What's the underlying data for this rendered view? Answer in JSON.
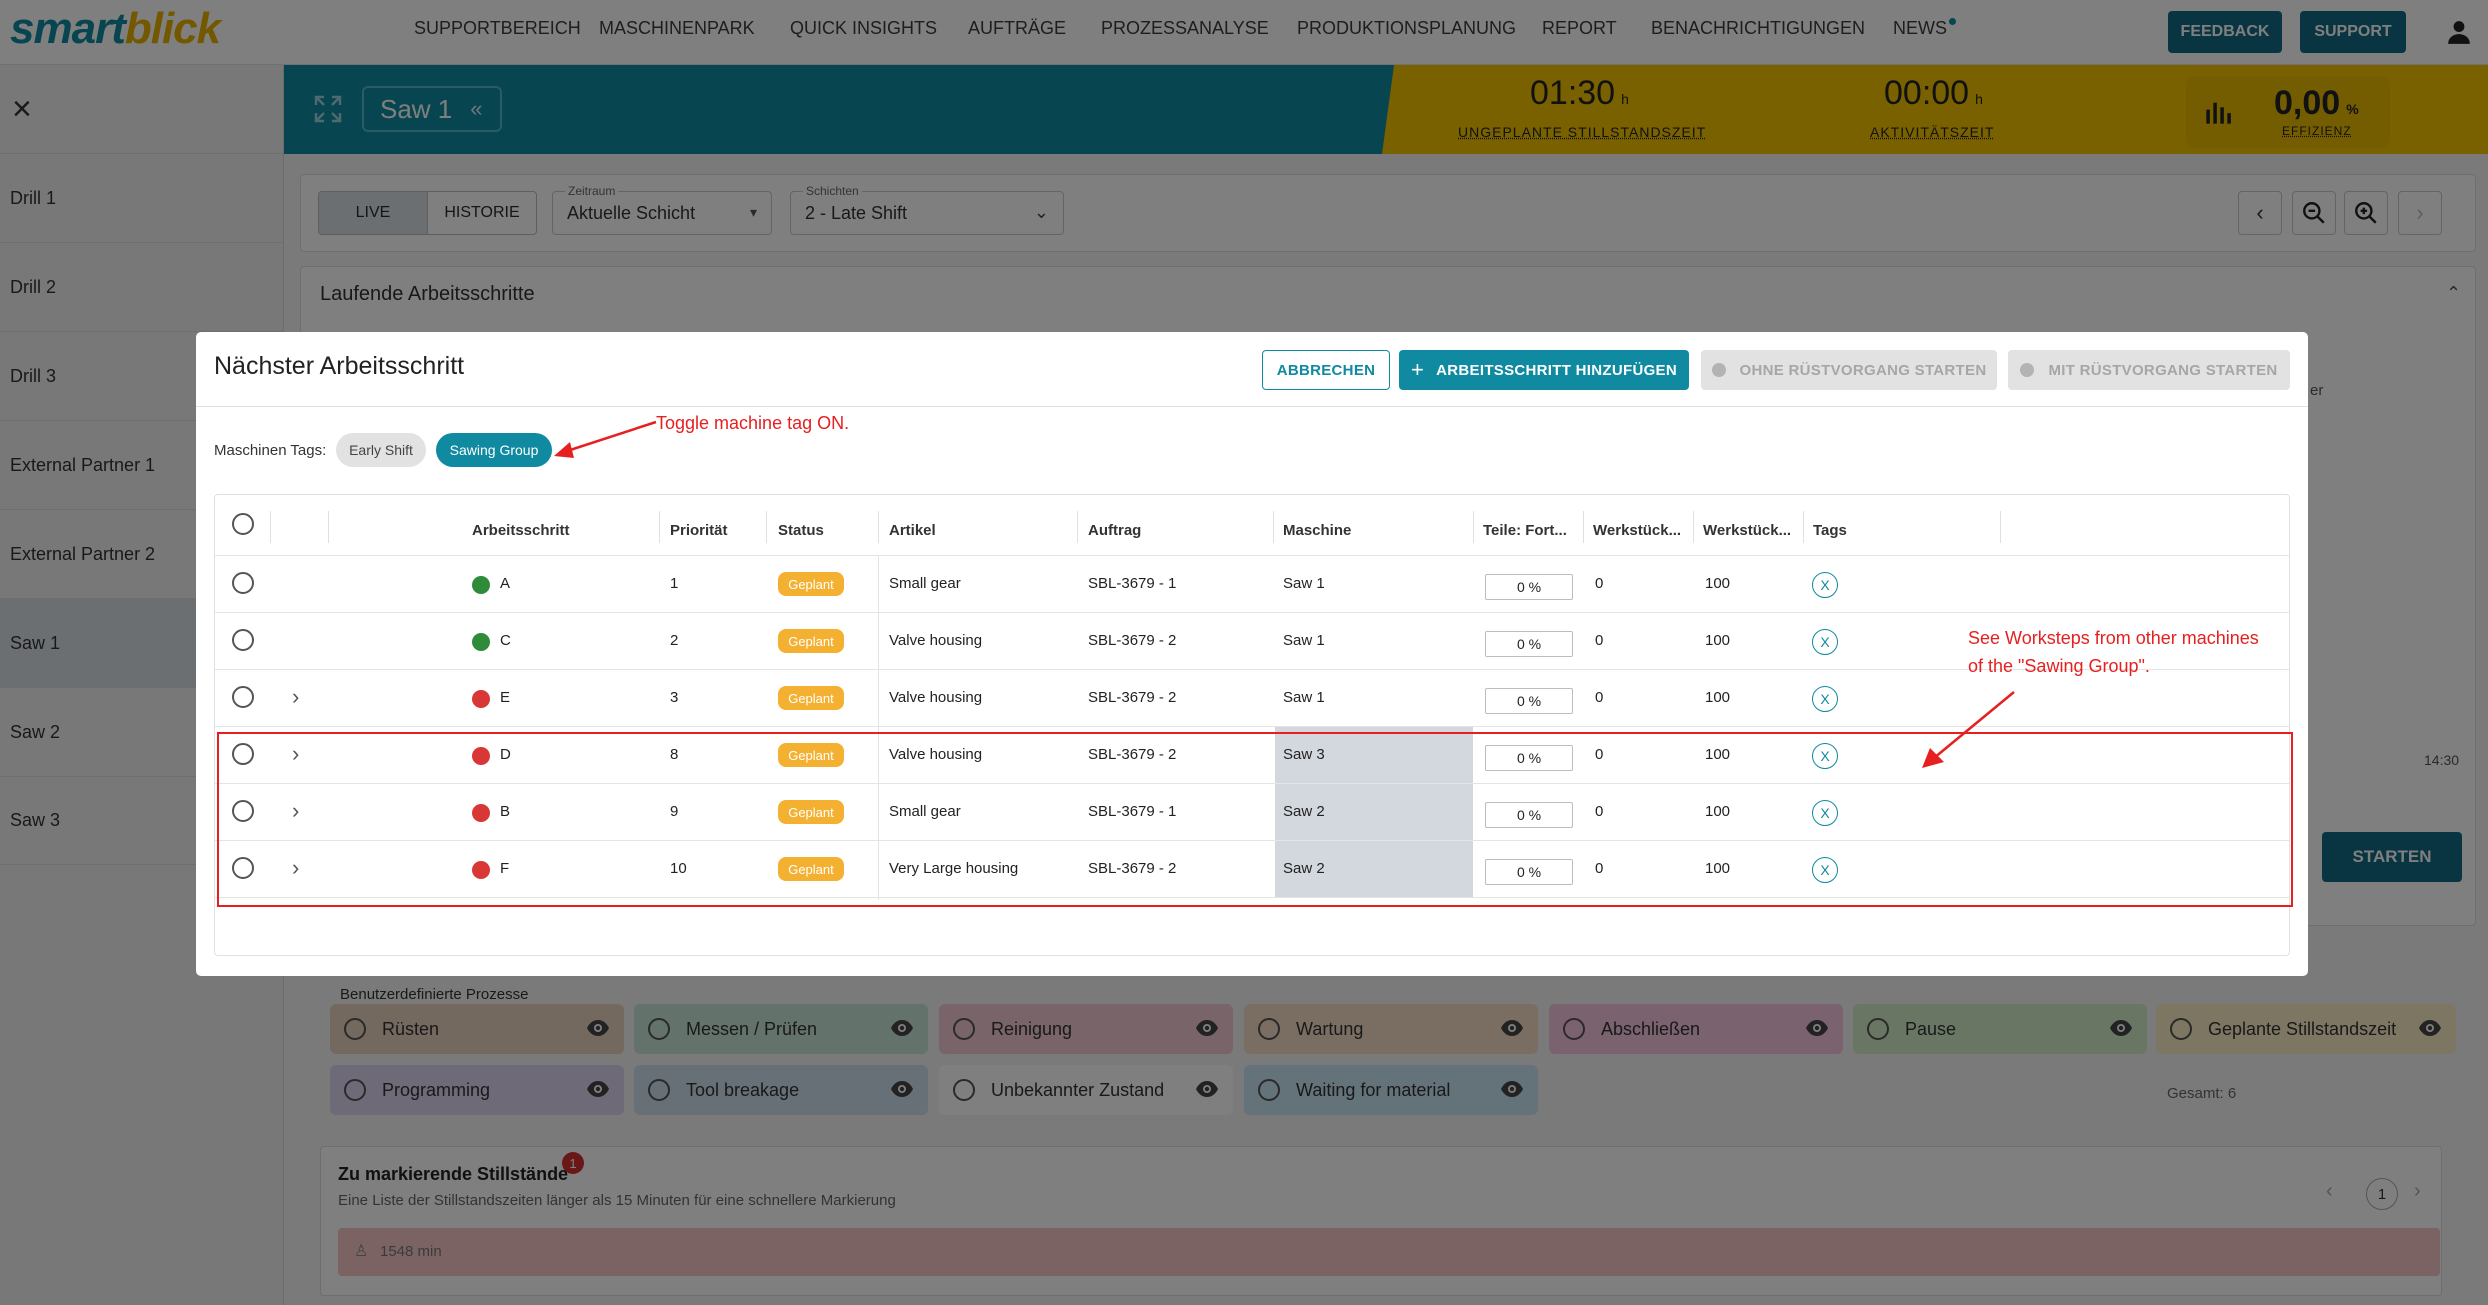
{
  "nav": {
    "logo_a": "smart",
    "logo_b": "blick",
    "items": [
      "SUPPORTBEREICH",
      "MASCHINENPARK",
      "QUICK INSIGHTS",
      "AUFTRÄGE",
      "PROZESSANALYSE",
      "PRODUKTIONSPLANUNG",
      "REPORT",
      "BENACHRICHTIGUNGEN",
      "NEWS"
    ],
    "feedback": "FEEDBACK",
    "support": "SUPPORT"
  },
  "sidebar": {
    "items": [
      "Drill 1",
      "Drill 2",
      "Drill 3",
      "External Partner 1",
      "External Partner 2",
      "Saw 1",
      "Saw 2",
      "Saw 3"
    ],
    "active": "Saw 1"
  },
  "header": {
    "machine": "Saw 1",
    "kpi1_value": "01:30",
    "kpi1_unit": "h",
    "kpi1_label": "UNGEPLANTE STILLSTANDSZEIT",
    "kpi2_value": "00:00",
    "kpi2_unit": "h",
    "kpi2_label": "AKTIVITÄTSZEIT",
    "kpi3_value": "0,00",
    "kpi3_unit": "%",
    "kpi3_label": "EFFIZIENZ"
  },
  "controls": {
    "live": "LIVE",
    "historie": "HISTORIE",
    "zeitraum_label": "Zeitraum",
    "zeitraum_value": "Aktuelle Schicht",
    "schichten_label": "Schichten",
    "schichten_value": "2 - Late Shift"
  },
  "background": {
    "laufende_title": "Laufende Arbeitsschritte",
    "partial_er": "er",
    "time_tick": "14:30",
    "starten": "STARTEN",
    "benutzer_title": "Benutzerdefinierte Prozesse",
    "processes": [
      {
        "label": "Rüsten",
        "color": "#e8d2bf"
      },
      {
        "label": "Messen / Prüfen",
        "color": "#c8e4d8"
      },
      {
        "label": "Reinigung",
        "color": "#f2c8d2"
      },
      {
        "label": "Wartung",
        "color": "#f4dcc4"
      },
      {
        "label": "Abschließen",
        "color": "#f4c4dc"
      },
      {
        "label": "Pause",
        "color": "#d4ecc8"
      },
      {
        "label": "Geplante Stillstandszeit",
        "color": "#f8ecc4"
      },
      {
        "label": "Programming",
        "color": "#dcd4f0"
      },
      {
        "label": "Tool breakage",
        "color": "#cce0ec"
      },
      {
        "label": "Unbekannter Zustand",
        "color": "#ffffff"
      },
      {
        "label": "Waiting for material",
        "color": "#c8e4f2"
      }
    ],
    "stillstaende_title": "Zu markierende Stillstände",
    "stillstaende_badge": "1",
    "stillstaende_sub": "Eine Liste der Stillstandszeiten länger als 15 Minuten für eine schnellere Markierung",
    "stillstaende_page": "1",
    "stillstaende_item": "1548 min"
  },
  "modal": {
    "title": "Nächster Arbeitsschritt",
    "cancel": "ABBRECHEN",
    "add": "ARBEITSSCHRITT HINZUFÜGEN",
    "start_without": "OHNE RÜSTVORGANG STARTEN",
    "start_with": "MIT RÜSTVORGANG STARTEN",
    "tags_label": "Maschinen Tags:",
    "tags": [
      {
        "label": "Early Shift",
        "active": false
      },
      {
        "label": "Sawing Group",
        "active": true
      }
    ],
    "columns": [
      "Arbeitsschritt",
      "Priorität",
      "Status",
      "Artikel",
      "Auftrag",
      "Maschine",
      "Teile: Fort...",
      "Werkstück...",
      "Werkstück...",
      "Tags"
    ],
    "rows": [
      {
        "step": "A",
        "dot": "#2e8b3a",
        "prio": "1",
        "status": "Geplant",
        "artikel": "Small gear",
        "auftrag": "SBL-3679 - 1",
        "maschine": "Saw 1",
        "fortschritt": "0 %",
        "w1": "0",
        "w2": "100",
        "tag": "X",
        "expand": false,
        "other_machine": false
      },
      {
        "step": "C",
        "dot": "#2e8b3a",
        "prio": "2",
        "status": "Geplant",
        "artikel": "Valve housing",
        "auftrag": "SBL-3679 - 2",
        "maschine": "Saw 1",
        "fortschritt": "0 %",
        "w1": "0",
        "w2": "100",
        "tag": "X",
        "expand": false,
        "other_machine": false
      },
      {
        "step": "E",
        "dot": "#d93636",
        "prio": "3",
        "status": "Geplant",
        "artikel": "Valve housing",
        "auftrag": "SBL-3679 - 2",
        "maschine": "Saw 1",
        "fortschritt": "0 %",
        "w1": "0",
        "w2": "100",
        "tag": "X",
        "expand": true,
        "other_machine": false
      },
      {
        "step": "D",
        "dot": "#d93636",
        "prio": "8",
        "status": "Geplant",
        "artikel": "Valve housing",
        "auftrag": "SBL-3679 - 2",
        "maschine": "Saw 3",
        "fortschritt": "0 %",
        "w1": "0",
        "w2": "100",
        "tag": "X",
        "expand": true,
        "other_machine": true
      },
      {
        "step": "B",
        "dot": "#d93636",
        "prio": "9",
        "status": "Geplant",
        "artikel": "Small gear",
        "auftrag": "SBL-3679 - 1",
        "maschine": "Saw 2",
        "fortschritt": "0 %",
        "w1": "0",
        "w2": "100",
        "tag": "X",
        "expand": true,
        "other_machine": true
      },
      {
        "step": "F",
        "dot": "#d93636",
        "prio": "10",
        "status": "Geplant",
        "artikel": "Very Large housing",
        "auftrag": "SBL-3679 - 2",
        "maschine": "Saw 2",
        "fortschritt": "0 %",
        "w1": "0",
        "w2": "100",
        "tag": "X",
        "expand": true,
        "other_machine": true
      }
    ],
    "total": "Gesamt: 6"
  },
  "annotations": {
    "toggle_note": "Toggle machine tag ON.",
    "worksteps_note_1": "See Worksteps from other machines",
    "worksteps_note_2": "of the \"Sawing Group\"."
  },
  "colors": {
    "teal": "#0f8aa0",
    "yellow": "#f2c200",
    "status_geplant": "#f4b131",
    "annotation_red": "#e62020"
  }
}
